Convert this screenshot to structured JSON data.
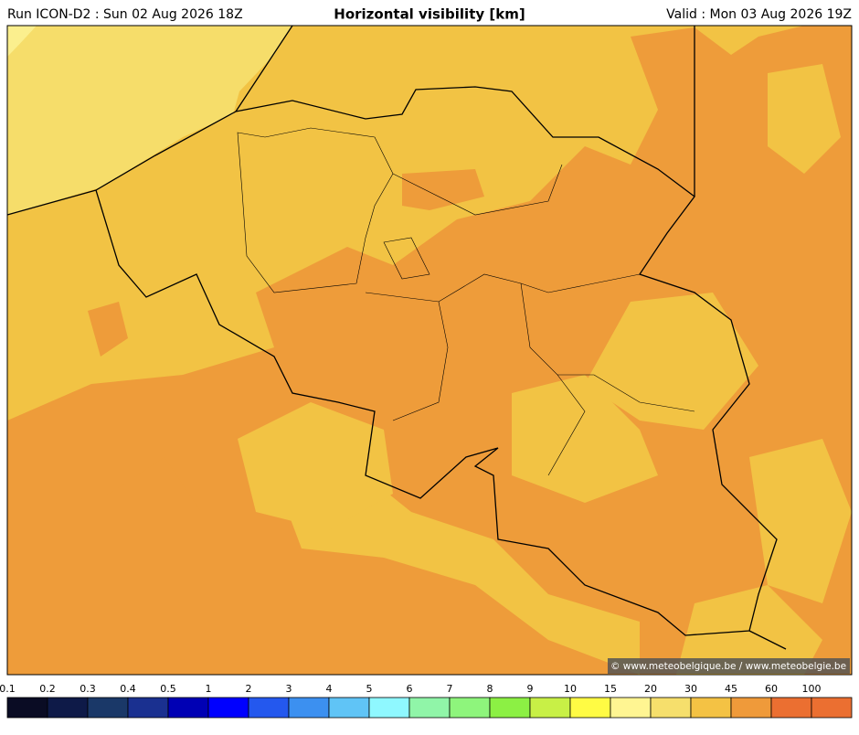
{
  "header": {
    "run": "Run ICON-D2 : Sun 02 Aug 2026 18Z",
    "title": "Horizontal visibility [km]",
    "valid": "Valid : Mon 03 Aug 2026 19Z"
  },
  "credit": "© www.meteobelgique.be / www.meteobelgie.be",
  "colorbar": {
    "ticks": [
      0.1,
      0.2,
      0.3,
      0.4,
      0.5,
      1,
      2,
      3,
      4,
      5,
      6,
      7,
      8,
      9,
      10,
      15,
      20,
      30,
      45,
      60,
      100
    ],
    "colors": [
      "#0a0c24",
      "#0e1a48",
      "#1a3868",
      "#1a3090",
      "#0000b4",
      "#0000ff",
      "#2458ee",
      "#3c90f0",
      "#60c4f6",
      "#8ff8ff",
      "#90f5a8",
      "#8ef57c",
      "#8cf044",
      "#c8f046",
      "#fffb44",
      "#fff592",
      "#f6df6c",
      "#f4c244",
      "#ef9a3a",
      "#eb6f31",
      "#eb6f31"
    ]
  }
}
